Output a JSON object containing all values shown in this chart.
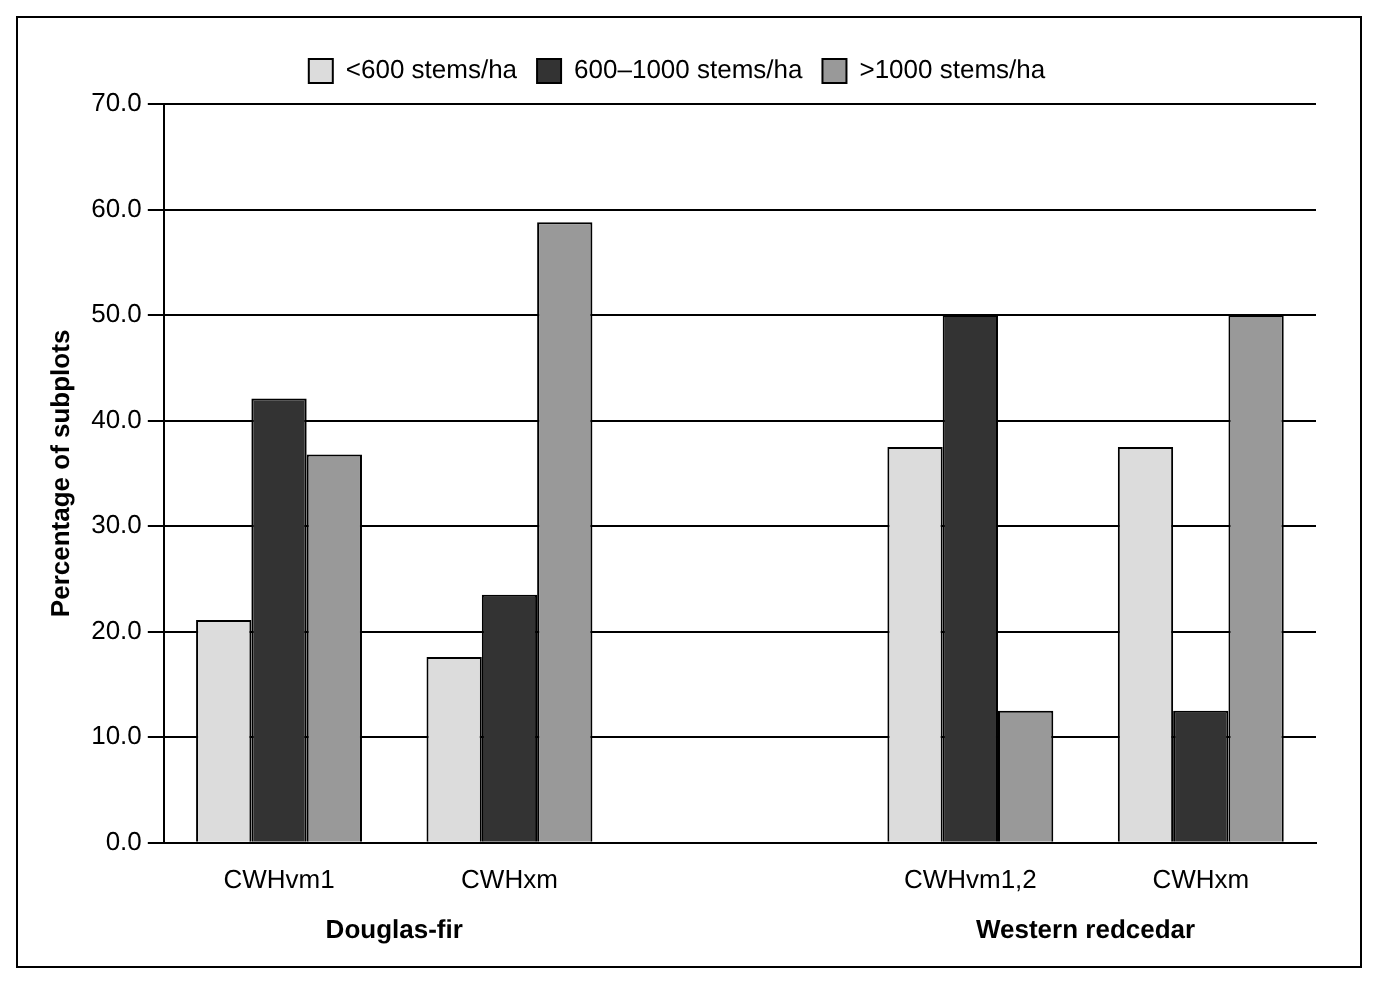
{
  "chart_data": {
    "type": "bar",
    "ylabel": "Percentage of subplots",
    "categories": [
      "CWHvm1",
      "CWHxm",
      null,
      "CWHvm1,2",
      "CWHxm"
    ],
    "series": [
      {
        "name": "<600 stems/ha",
        "color": "#dcdcdc",
        "values": [
          21.1,
          17.6,
          null,
          37.5,
          37.5
        ]
      },
      {
        "name": "600–1000 stems/ha",
        "color": "#333333",
        "values": [
          42.1,
          23.5,
          null,
          50.0,
          12.5
        ]
      },
      {
        "name": ">1000 stems/ha",
        "color": "#999999",
        "values": [
          36.8,
          58.8,
          null,
          12.5,
          50.0
        ]
      }
    ],
    "ylim": [
      0,
      70
    ],
    "yticks": [
      {
        "value": 0,
        "label": "0.0"
      },
      {
        "value": 10,
        "label": "10.0"
      },
      {
        "value": 20,
        "label": "20.0"
      },
      {
        "value": 30,
        "label": "30.0"
      },
      {
        "value": 40,
        "label": "40.0"
      },
      {
        "value": 50,
        "label": "50.0"
      },
      {
        "value": 60,
        "label": "60.0"
      },
      {
        "value": 70,
        "label": "70.0"
      }
    ],
    "grid": "y",
    "legend": "top",
    "annotations": [
      "Douglas-fir",
      "Western redcedar"
    ]
  }
}
